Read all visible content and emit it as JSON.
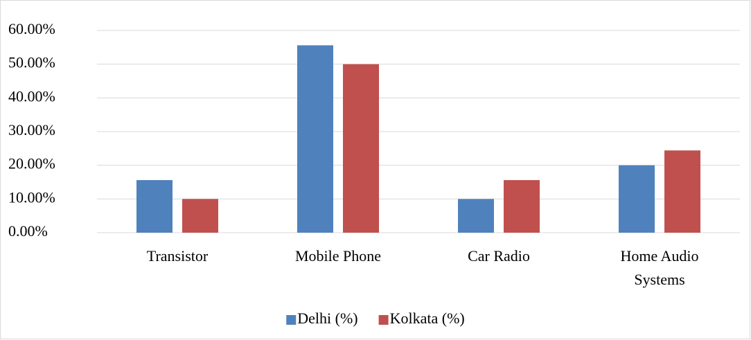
{
  "chart_data": {
    "type": "bar",
    "categories": [
      "Transistor",
      "Mobile Phone",
      "Car Radio",
      "Home Audio Systems"
    ],
    "series": [
      {
        "name": "Delhi (%)",
        "color": "#4f81bd",
        "values": [
          15.6,
          55.6,
          10,
          20
        ]
      },
      {
        "name": "Kolkata (%)",
        "color": "#c0504d",
        "values": [
          10,
          50,
          15.6,
          24.4
        ]
      }
    ],
    "ylim": [
      0,
      60
    ],
    "yticks": [
      {
        "value": 0,
        "label": "0.00%"
      },
      {
        "value": 10,
        "label": "10.00%"
      },
      {
        "value": 20,
        "label": "20.00%"
      },
      {
        "value": 30,
        "label": "30.00%"
      },
      {
        "value": 40,
        "label": "40.00%"
      },
      {
        "value": 50,
        "label": "50.00%"
      },
      {
        "value": 60,
        "label": "60.00%"
      }
    ],
    "grid": true,
    "legend": "bottom"
  }
}
